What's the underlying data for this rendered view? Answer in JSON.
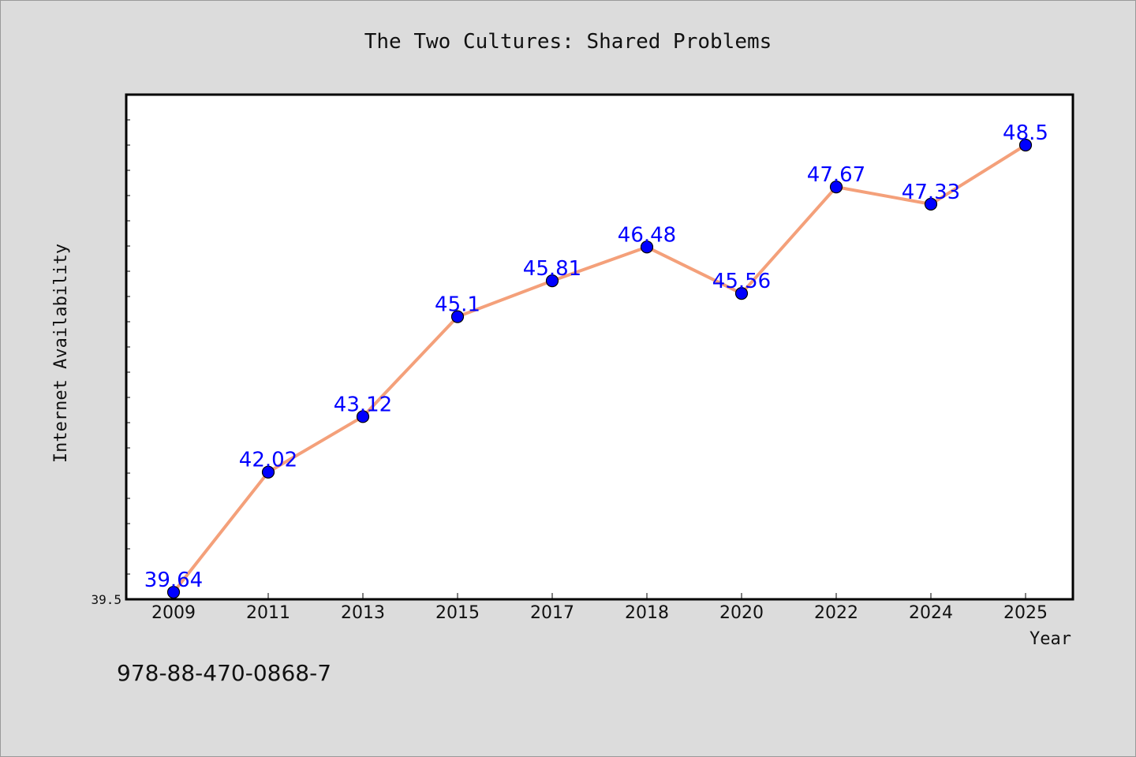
{
  "colors": {
    "background": "#dcdcdc",
    "plot_background": "#ffffff",
    "line": "#f4a07a",
    "marker": "#0000ff",
    "label": "#0000ff"
  },
  "footer": {
    "isbn": "978-88-470-0868-7"
  },
  "chart_data": {
    "type": "line",
    "title": "The Two Cultures: Shared Problems",
    "xlabel": "Year",
    "ylabel": "Internet Availability",
    "categories": [
      "2009",
      "2011",
      "2013",
      "2015",
      "2017",
      "2018",
      "2020",
      "2022",
      "2024",
      "2025"
    ],
    "series": [
      {
        "values": [
          39.64,
          42.02,
          43.12,
          45.1,
          45.81,
          46.48,
          45.56,
          47.67,
          47.33,
          48.5
        ]
      }
    ],
    "ylim": [
      39.5,
      49.5
    ],
    "ytick_labels": [
      "39.5"
    ],
    "grid": false,
    "data_labels": [
      "39.64",
      "42.02",
      "43.12",
      "45.1",
      "45.81",
      "46.48",
      "45.56",
      "47.67",
      "47.33",
      "48.5"
    ]
  }
}
